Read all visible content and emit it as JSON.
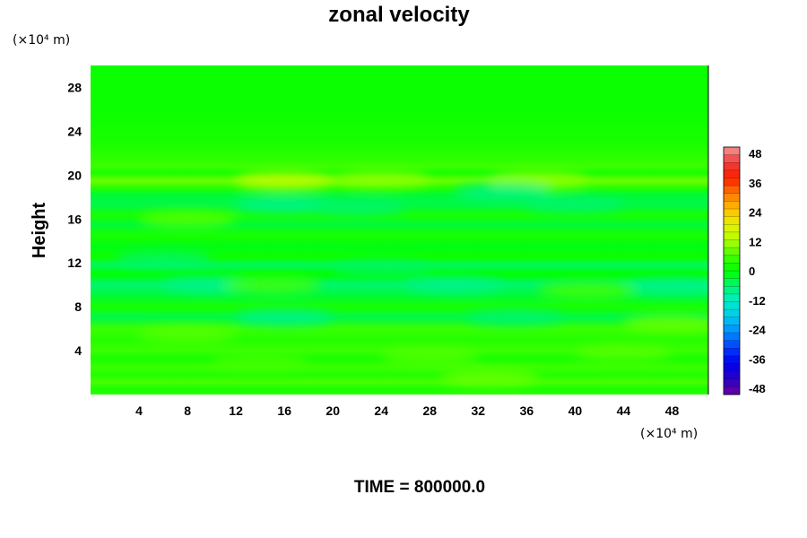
{
  "chart_data": {
    "type": "heatmap",
    "title": "zonal velocity",
    "ylabel": "Height",
    "y_unit": "(×10⁴ m)",
    "x_unit": "(×10⁴ m)",
    "xlim": [
      0,
      51
    ],
    "ylim": [
      0,
      30
    ],
    "x_ticks": [
      4,
      8,
      12,
      16,
      20,
      24,
      28,
      32,
      36,
      40,
      44,
      48
    ],
    "y_ticks": [
      4,
      8,
      12,
      16,
      20,
      24,
      28
    ],
    "colorbar": {
      "ticks": [
        48,
        36,
        24,
        12,
        0,
        -12,
        -24,
        -36,
        -48
      ],
      "range": [
        -48,
        48
      ],
      "levels": 32
    },
    "bands": [
      {
        "y": 29,
        "value": 1
      },
      {
        "y": 26,
        "value": 1
      },
      {
        "y": 23,
        "value": 2
      },
      {
        "y": 21.4,
        "value": 4
      },
      {
        "y": 20.8,
        "value": 5
      },
      {
        "y": 20.2,
        "value": 2
      },
      {
        "y": 19.5,
        "value": 8
      },
      {
        "y": 18.8,
        "value": 3
      },
      {
        "y": 18.2,
        "value": -3
      },
      {
        "y": 17.3,
        "value": -4
      },
      {
        "y": 16.3,
        "value": 2
      },
      {
        "y": 15.5,
        "value": -3
      },
      {
        "y": 14.5,
        "value": 2
      },
      {
        "y": 13.5,
        "value": -1
      },
      {
        "y": 12.5,
        "value": 1
      },
      {
        "y": 11.8,
        "value": -5
      },
      {
        "y": 11.0,
        "value": 0
      },
      {
        "y": 10.0,
        "value": -6
      },
      {
        "y": 9.0,
        "value": -3
      },
      {
        "y": 8.0,
        "value": 2
      },
      {
        "y": 7.0,
        "value": -4
      },
      {
        "y": 6.0,
        "value": 5
      },
      {
        "y": 5.0,
        "value": 3
      },
      {
        "y": 4.0,
        "value": 5
      },
      {
        "y": 3.3,
        "value": 2
      },
      {
        "y": 2.5,
        "value": 5
      },
      {
        "y": 1.8,
        "value": 3
      },
      {
        "y": 1.1,
        "value": 6
      },
      {
        "y": 0.5,
        "value": 2
      },
      {
        "y": 0.0,
        "value": 4
      }
    ],
    "patches": [
      {
        "x": 16,
        "y": 19.5,
        "value": 14
      },
      {
        "x": 24,
        "y": 19.6,
        "value": 10
      },
      {
        "x": 37,
        "y": 19.6,
        "value": 10
      },
      {
        "x": 8,
        "y": 16.0,
        "value": 7
      },
      {
        "x": 34,
        "y": 18.5,
        "value": -8
      },
      {
        "x": 16,
        "y": 17.3,
        "value": -8
      },
      {
        "x": 22,
        "y": 17.0,
        "value": -6
      },
      {
        "x": 40,
        "y": 17.3,
        "value": -6
      },
      {
        "x": 10,
        "y": 10.0,
        "value": -8
      },
      {
        "x": 30,
        "y": 10.0,
        "value": -8
      },
      {
        "x": 48,
        "y": 9.8,
        "value": -8
      },
      {
        "x": 15,
        "y": 10.0,
        "value": 6
      },
      {
        "x": 41,
        "y": 9.5,
        "value": 6
      },
      {
        "x": 16,
        "y": 7.0,
        "value": -8
      },
      {
        "x": 35,
        "y": 7.0,
        "value": -6
      },
      {
        "x": 48,
        "y": 6.5,
        "value": 8
      },
      {
        "x": 8,
        "y": 5.5,
        "value": 7
      },
      {
        "x": 28,
        "y": 3.5,
        "value": 7
      },
      {
        "x": 44,
        "y": 3.8,
        "value": 7
      },
      {
        "x": 14,
        "y": 3.0,
        "value": 6
      },
      {
        "x": 33,
        "y": 1.5,
        "value": 8
      },
      {
        "x": 6,
        "y": 12.3,
        "value": -6
      },
      {
        "x": 24,
        "y": 11.5,
        "value": -5
      }
    ]
  },
  "footer": {
    "time_label": "TIME = 800000.0"
  }
}
